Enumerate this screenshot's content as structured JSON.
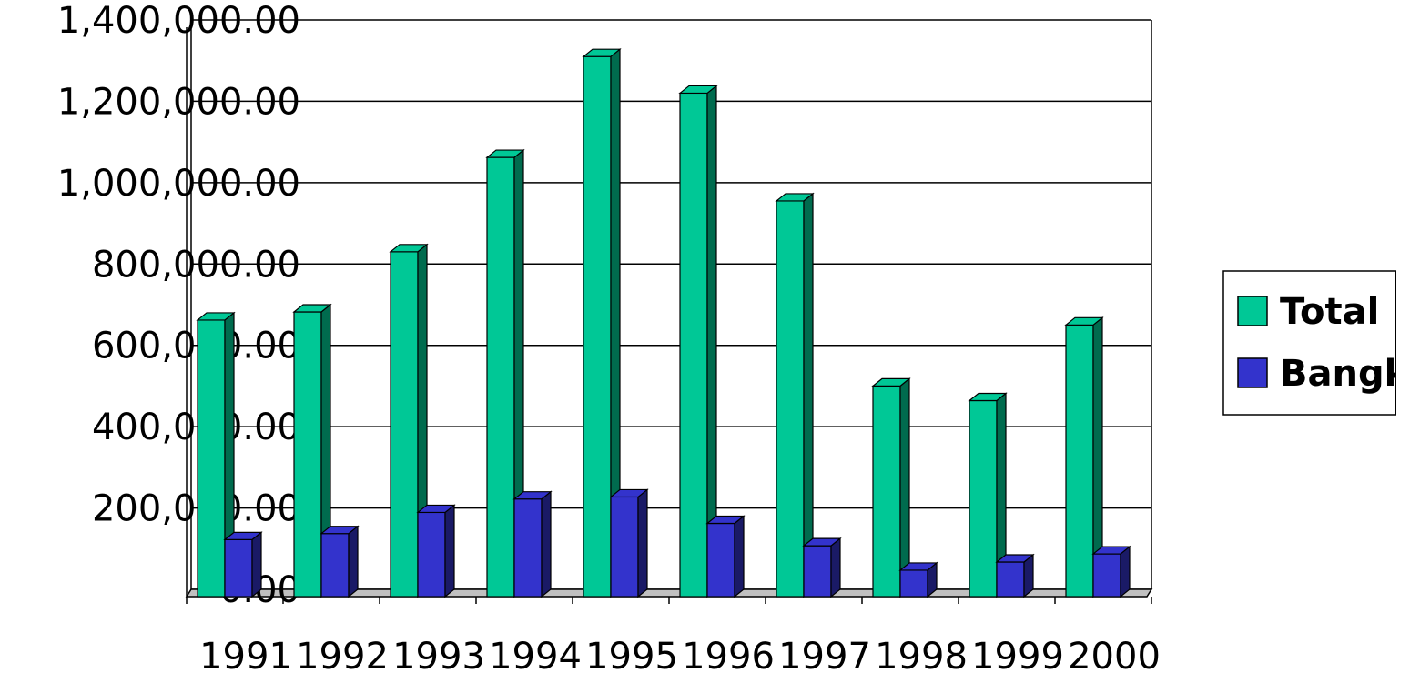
{
  "chart_data": {
    "type": "bar",
    "three_d": true,
    "categories": [
      "1991",
      "1992",
      "1993",
      "1994",
      "1995",
      "1996",
      "1997",
      "1998",
      "1999",
      "2000"
    ],
    "series": [
      {
        "name": "Total",
        "color": "#00C896",
        "side_color": "#006B4E",
        "values": [
          680000,
          700000,
          848000,
          1080000,
          1328000,
          1238000,
          973000,
          518000,
          482000,
          668000
        ]
      },
      {
        "name": "Bangk",
        "color": "#3333CC",
        "side_color": "#1A1A66",
        "values": [
          140000,
          155000,
          207000,
          240000,
          245000,
          180000,
          125000,
          65000,
          85000,
          105000
        ]
      }
    ],
    "ylim": [
      0,
      1400000
    ],
    "y_ticks": [
      "0.00",
      "200,000.00",
      "400,000.00",
      "600,000.00",
      "800,000.00",
      "1,000,000.00",
      "1,200,000.00",
      "1,400,000.00"
    ],
    "grid": true,
    "legend_position": "right",
    "title": "",
    "xlabel": "",
    "ylabel": ""
  }
}
